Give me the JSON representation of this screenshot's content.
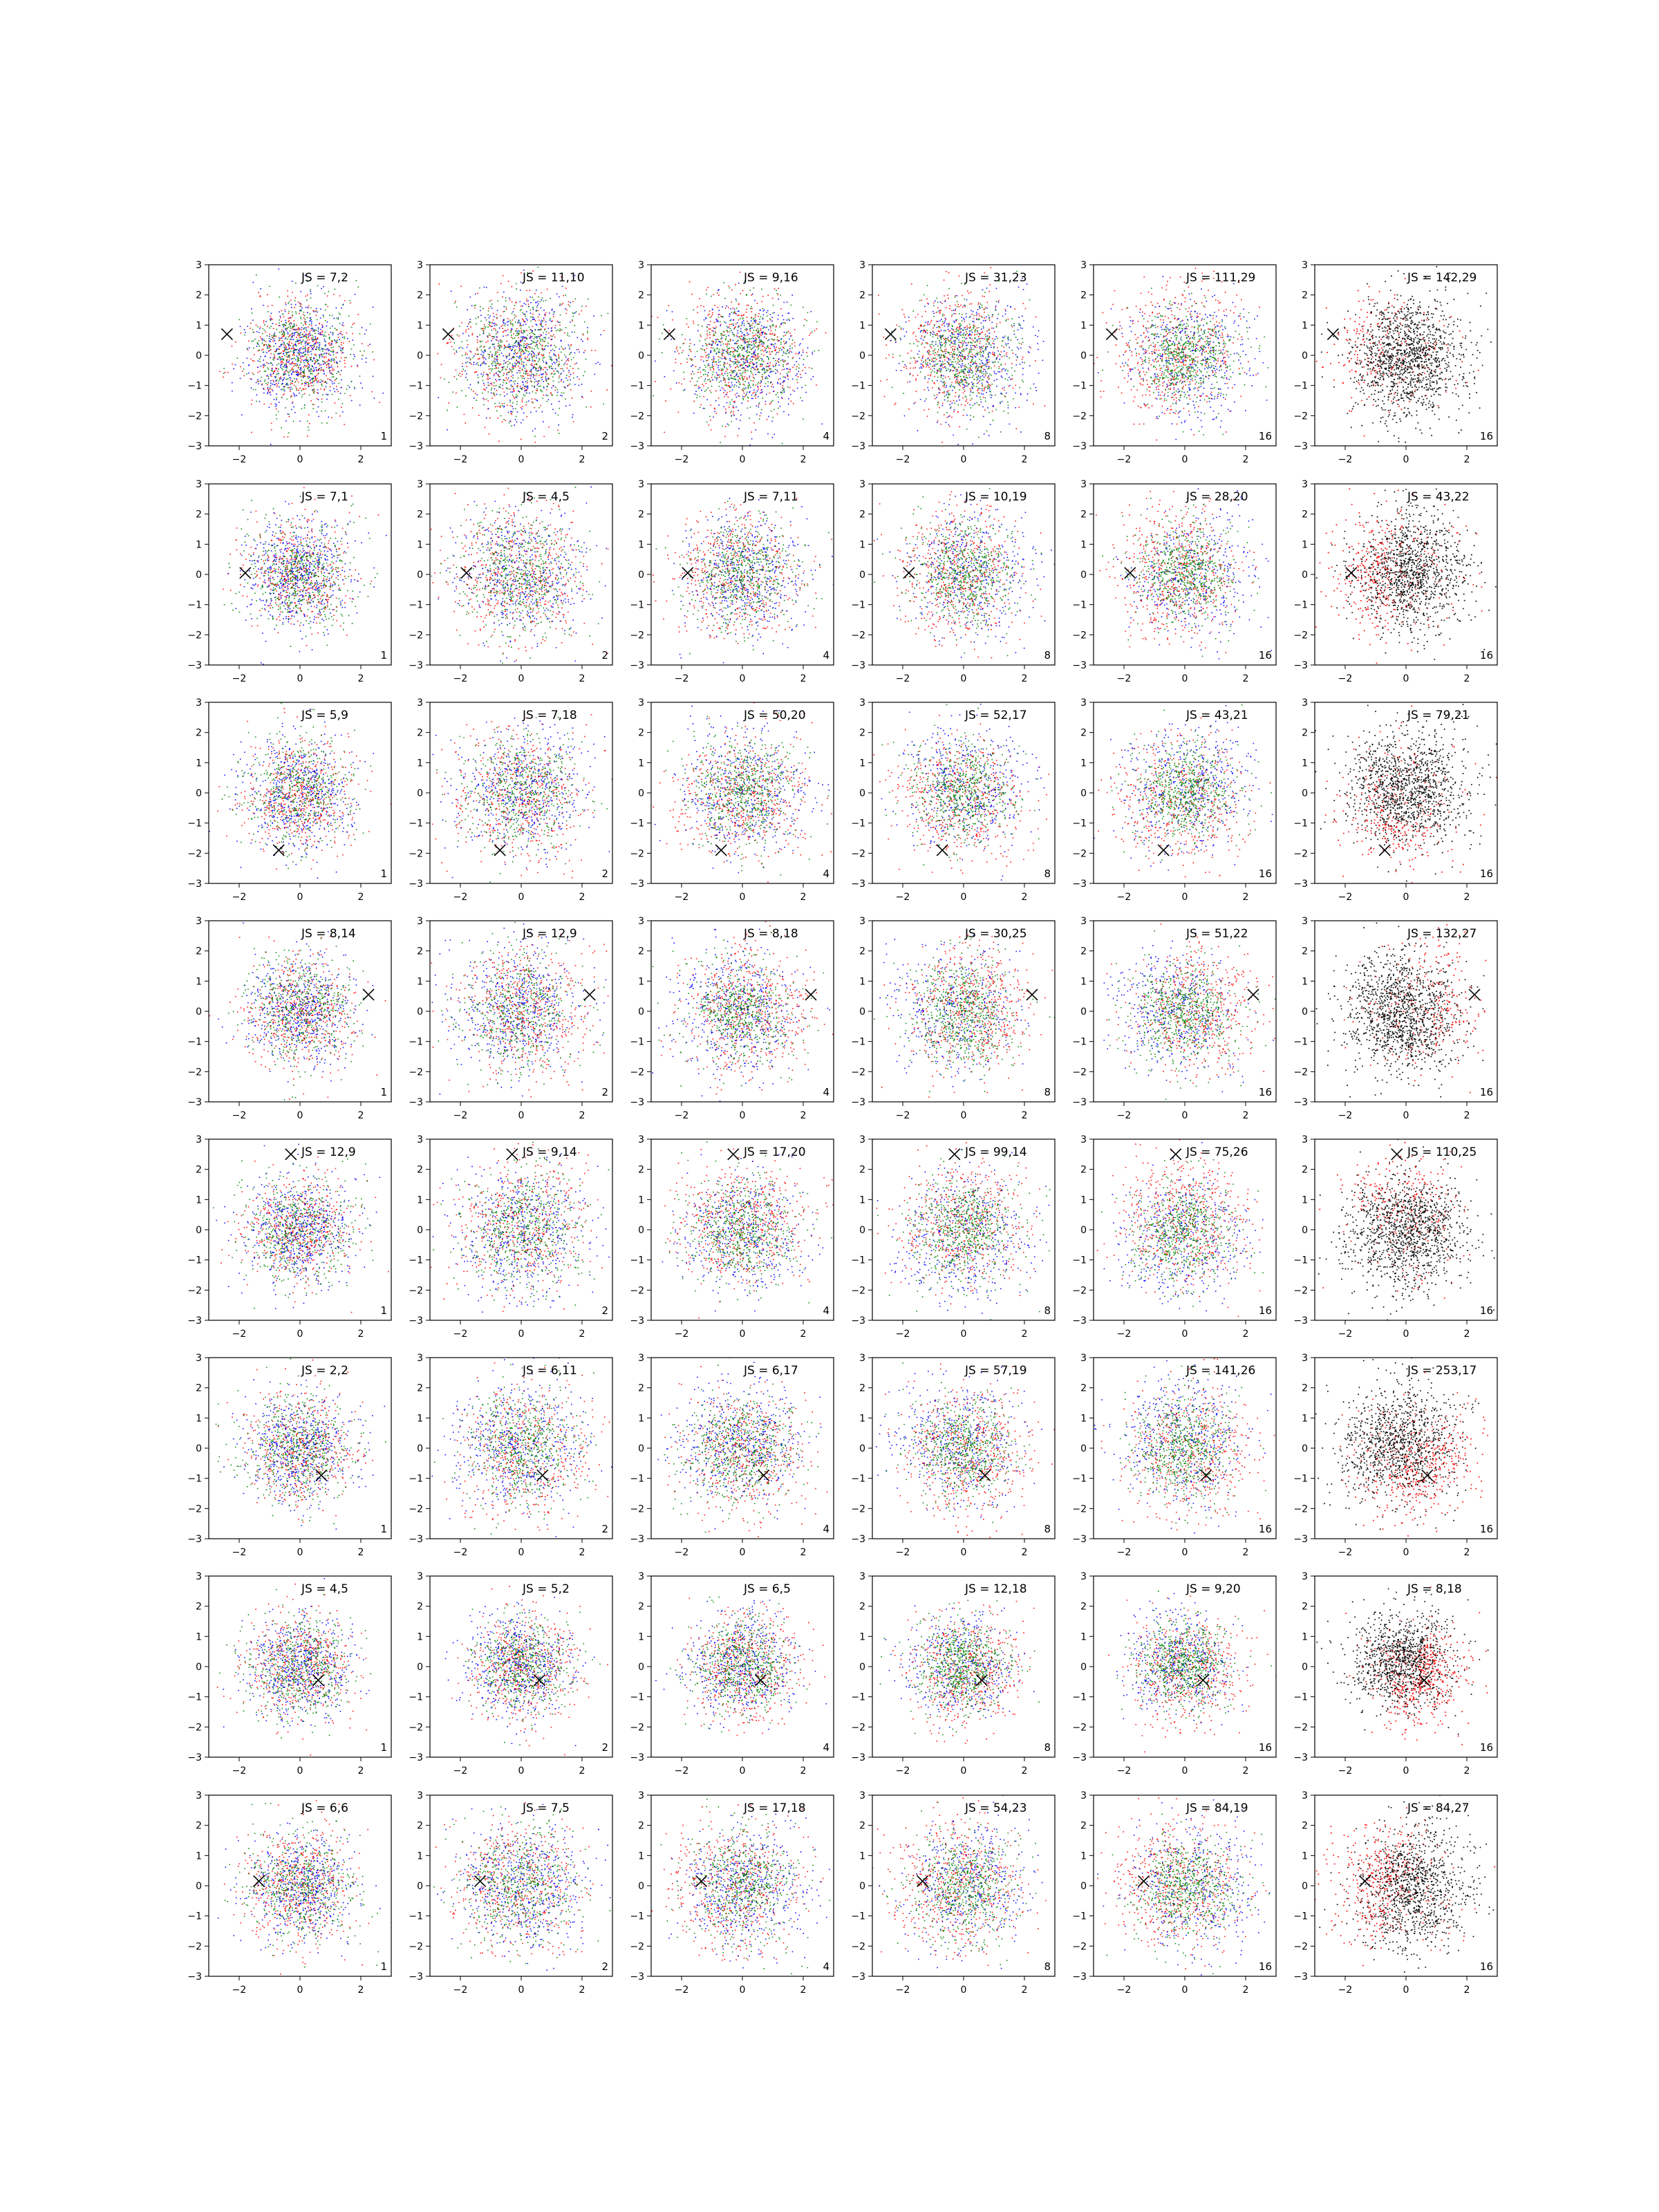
{
  "colors": {
    "series_a": "#ff0000",
    "series_b": "#0000ff",
    "series_c": "#008000",
    "series_d": "#000000",
    "marker": "#000000"
  },
  "chart_data": {
    "type": "scatter",
    "layout": "grid of 8 rows x 6 columns",
    "xlim": [
      -3,
      3
    ],
    "ylim": [
      -3,
      3
    ],
    "xticks": [
      -2,
      0,
      2
    ],
    "yticks": [
      -3,
      -2,
      -1,
      0,
      1,
      2,
      3
    ],
    "grid": false,
    "panel_columns_corner_labels": [
      "1",
      "2",
      "4",
      "8",
      "16",
      "16"
    ],
    "marker": "x",
    "panels": [
      {
        "row": 1,
        "marker_xy": [
          -2.4,
          0.7
        ],
        "js": [
          "JS = 7,2",
          "JS = 11,10",
          "JS = 9,16",
          "JS = 31,23",
          "JS = 111,29",
          "JS = 142,29"
        ]
      },
      {
        "row": 2,
        "marker_xy": [
          -1.8,
          0.05
        ],
        "js": [
          "JS = 7,1",
          "JS = 4,5",
          "JS = 7,11",
          "JS = 10,19",
          "JS = 28,20",
          "JS = 43,22"
        ]
      },
      {
        "row": 3,
        "marker_xy": [
          -0.7,
          -1.9
        ],
        "js": [
          "JS = 5,9",
          "JS = 7,18",
          "JS = 50,20",
          "JS = 52,17",
          "JS = 43,21",
          "JS = 79,21"
        ]
      },
      {
        "row": 4,
        "marker_xy": [
          2.25,
          0.55
        ],
        "js": [
          "JS = 8,14",
          "JS = 12,9",
          "JS = 8,18",
          "JS = 30,25",
          "JS = 51,22",
          "JS = 132,27"
        ]
      },
      {
        "row": 5,
        "marker_xy": [
          -0.3,
          2.5
        ],
        "js": [
          "JS = 12,9",
          "JS = 9,14",
          "JS = 17,20",
          "JS = 99,14",
          "JS = 75,26",
          "JS = 110,25"
        ]
      },
      {
        "row": 6,
        "marker_xy": [
          0.7,
          -0.9
        ],
        "js": [
          "JS = 2,2",
          "JS = 6,11",
          "JS = 6,17",
          "JS = 57,19",
          "JS = 141,26",
          "JS = 253,17"
        ]
      },
      {
        "row": 7,
        "marker_xy": [
          0.6,
          -0.45
        ],
        "js": [
          "JS = 4,5",
          "JS = 5,2",
          "JS = 6,5",
          "JS = 12,18",
          "JS = 9,20",
          "JS = 8,18"
        ]
      },
      {
        "row": 8,
        "marker_xy": [
          -1.35,
          0.15
        ],
        "js": [
          "JS = 6,6",
          "JS = 7,5",
          "JS = 17,18",
          "JS = 54,23",
          "JS = 84,19",
          "JS = 84,27"
        ]
      }
    ]
  }
}
